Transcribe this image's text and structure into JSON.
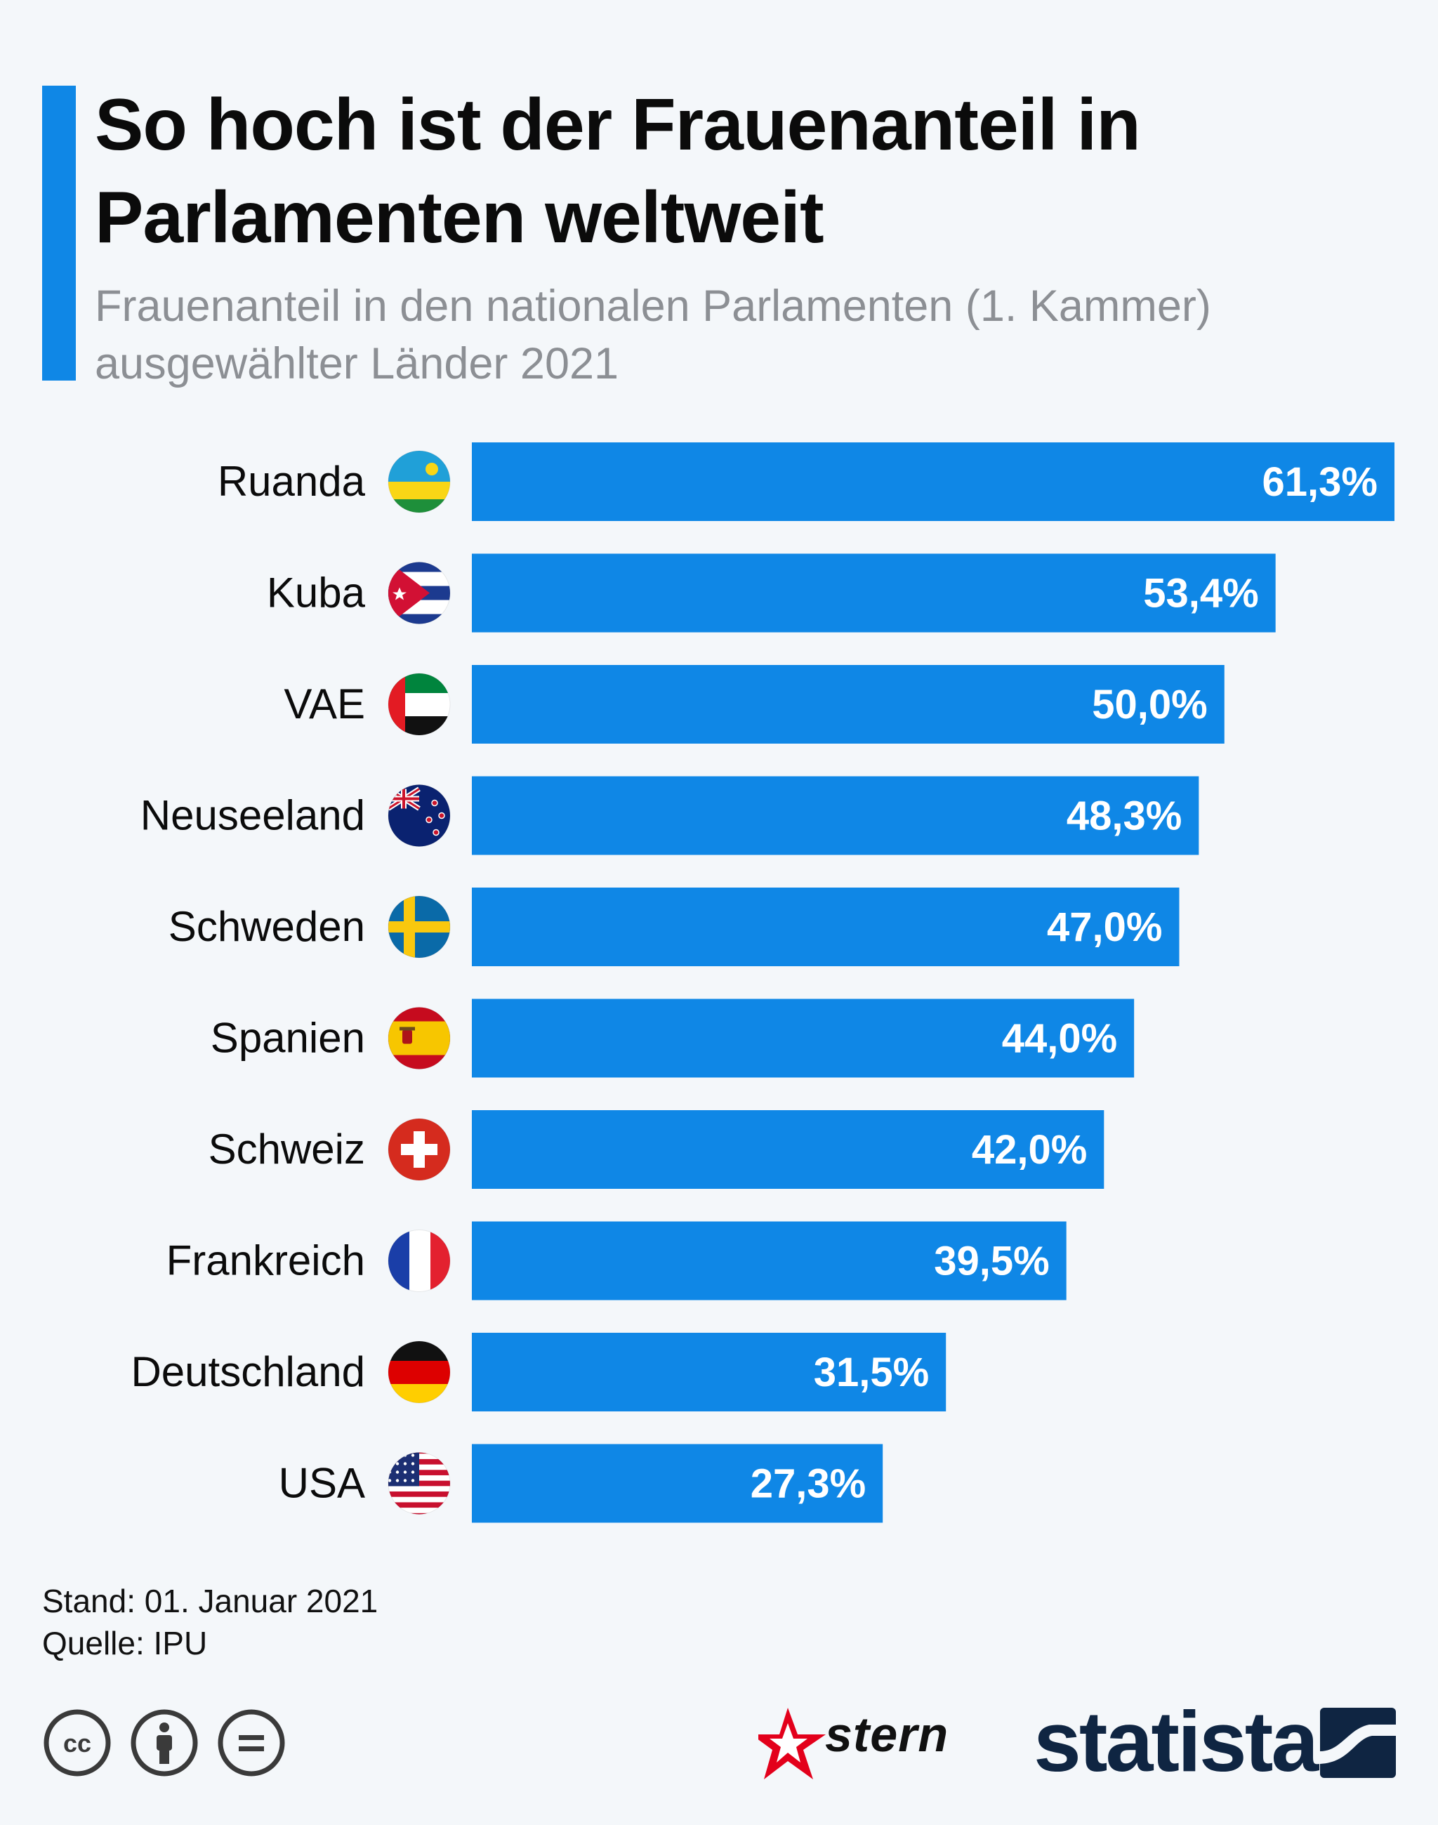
{
  "title": "So hoch ist der Frauenanteil in Parlamenten weltweit",
  "subtitle": "Frauenanteil in den nationalen Parlamenten (1. Kammer) ausgewählter Länder 2021",
  "footer": {
    "stand": "Stand: 01. Januar 2021",
    "quelle": "Quelle: IPU"
  },
  "logos": {
    "stern": "stern",
    "statista": "statista"
  },
  "colors": {
    "bar": "#0f87e6",
    "accent": "#0f87e6",
    "value_label": "#ffffff",
    "category_label": "#0b0b0b"
  },
  "chart_data": {
    "type": "bar",
    "orientation": "horizontal",
    "categories": [
      "Ruanda",
      "Kuba",
      "VAE",
      "Neuseeland",
      "Schweden",
      "Spanien",
      "Schweiz",
      "Frankreich",
      "Deutschland",
      "USA"
    ],
    "values": [
      61.3,
      53.4,
      50.0,
      48.3,
      47.0,
      44.0,
      42.0,
      39.5,
      31.5,
      27.3
    ],
    "value_labels": [
      "61,3%",
      "53,4%",
      "50,0%",
      "48,3%",
      "47,0%",
      "44,0%",
      "42,0%",
      "39,5%",
      "31,5%",
      "27,3%"
    ],
    "flags": [
      "rwanda-flag",
      "cuba-flag",
      "uae-flag",
      "new-zealand-flag",
      "sweden-flag",
      "spain-flag",
      "switzerland-flag",
      "france-flag",
      "germany-flag",
      "usa-flag"
    ],
    "unit": "%",
    "xlim": [
      0,
      61.3
    ],
    "grid": false,
    "legend": "none"
  }
}
